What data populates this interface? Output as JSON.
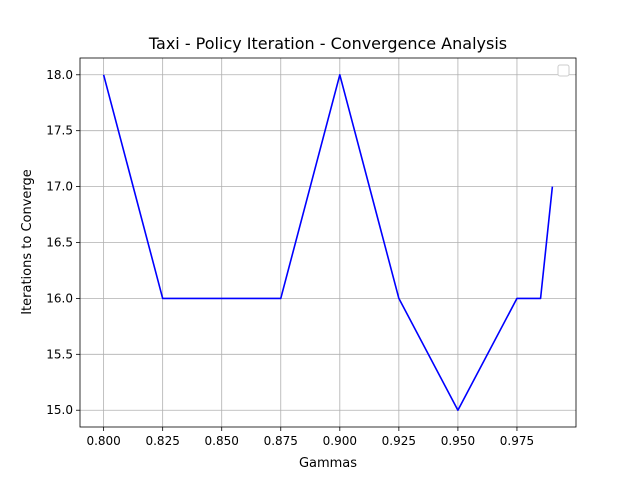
{
  "chart_data": {
    "type": "line",
    "title": "Taxi - Policy Iteration - Convergence Analysis",
    "xlabel": "Gammas",
    "ylabel": "Iterations to Converge",
    "xlim": [
      0.79,
      1.0
    ],
    "ylim": [
      14.85,
      18.15
    ],
    "xticks": [
      0.8,
      0.825,
      0.85,
      0.875,
      0.9,
      0.925,
      0.95,
      0.975
    ],
    "xtick_labels": [
      "0.800",
      "0.825",
      "0.850",
      "0.875",
      "0.900",
      "0.925",
      "0.950",
      "0.975"
    ],
    "yticks": [
      15.0,
      15.5,
      16.0,
      16.5,
      17.0,
      17.5,
      18.0
    ],
    "ytick_labels": [
      "15.0",
      "15.5",
      "16.0",
      "16.5",
      "17.0",
      "17.5",
      "18.0"
    ],
    "grid": true,
    "legend": "top-right",
    "series": [
      {
        "color": "#0000ff",
        "x": [
          0.8,
          0.825,
          0.85,
          0.875,
          0.9,
          0.925,
          0.95,
          0.975,
          0.985,
          0.99
        ],
        "y": [
          18,
          16,
          16,
          16,
          18,
          16,
          15,
          16,
          16,
          17
        ]
      }
    ]
  }
}
